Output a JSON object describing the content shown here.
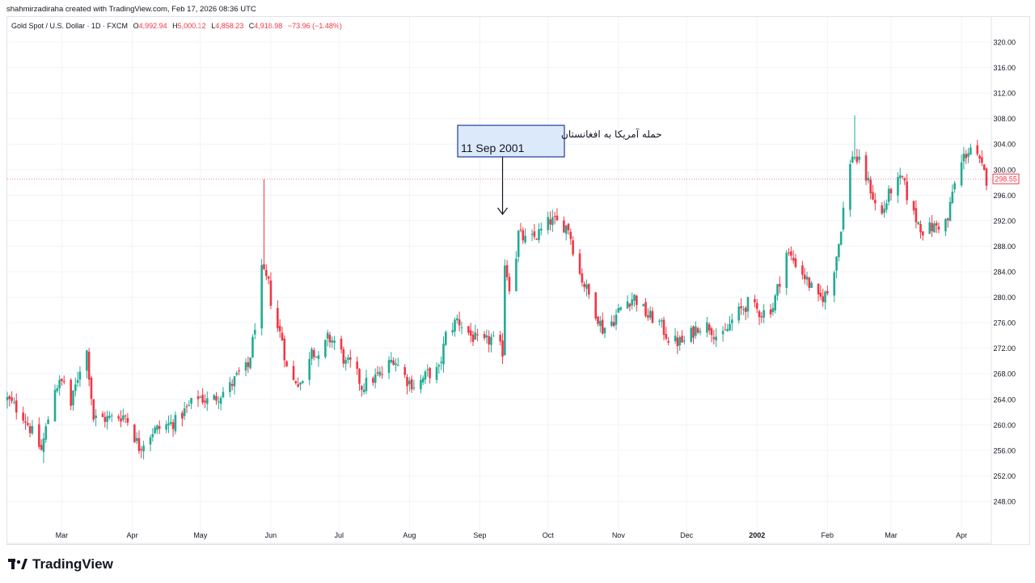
{
  "header": {
    "credit": "shahmirzadiraha created with TradingView.com, Feb 17, 2026 08:36 UTC"
  },
  "legend": {
    "symbol": "Gold Spot / U.S. Dollar · 1D · FXCM",
    "o_label": "O",
    "o_value": "4,992.94",
    "h_label": "H",
    "h_value": "5,000.12",
    "l_label": "L",
    "l_value": "4,858.23",
    "c_label": "C",
    "c_value": "4,918.98",
    "change": "−73.96 (−1.48%)"
  },
  "brand": {
    "name": "TradingView"
  },
  "colors": {
    "up": "#22ab94",
    "down": "#f23645",
    "grid": "#f0f3fa",
    "axis_text": "#131722",
    "annotation_border": "#1e3d8f",
    "annotation_fill": "#dbe9fb"
  },
  "chart_data": {
    "type": "candlestick",
    "y_axis": {
      "position": "right",
      "min": 246.5,
      "max": 321.5,
      "ticks": [
        "248.00",
        "252.00",
        "256.00",
        "260.00",
        "264.00",
        "268.00",
        "272.00",
        "276.00",
        "280.00",
        "284.00",
        "288.00",
        "292.00",
        "296.00",
        "300.00",
        "304.00",
        "308.00",
        "312.00",
        "316.00",
        "320.00"
      ]
    },
    "x_axis": {
      "start": "2001-02-05",
      "end": "2002-04-12",
      "ticks": [
        {
          "label": "Mar",
          "date": "2001-03-01"
        },
        {
          "label": "Apr",
          "date": "2001-04-01"
        },
        {
          "label": "May",
          "date": "2001-05-01"
        },
        {
          "label": "Jun",
          "date": "2001-06-01"
        },
        {
          "label": "Jul",
          "date": "2001-07-01"
        },
        {
          "label": "Aug",
          "date": "2001-08-01"
        },
        {
          "label": "Sep",
          "date": "2001-09-01"
        },
        {
          "label": "Oct",
          "date": "2001-10-01"
        },
        {
          "label": "Nov",
          "date": "2001-11-01"
        },
        {
          "label": "Dec",
          "date": "2001-12-01"
        },
        {
          "label": "2002",
          "date": "2002-01-01",
          "bold": true
        },
        {
          "label": "Feb",
          "date": "2002-02-01"
        },
        {
          "label": "Mar",
          "date": "2002-03-01"
        },
        {
          "label": "Apr",
          "date": "2002-04-01"
        }
      ]
    },
    "anchors": [
      [
        "2001-02-05",
        264.0
      ],
      [
        "2001-02-12",
        261.5
      ],
      [
        "2001-02-20",
        256.0
      ],
      [
        "2001-02-26",
        266.0
      ],
      [
        "2001-03-02",
        266.8
      ],
      [
        "2001-03-05",
        263.0
      ],
      [
        "2001-03-09",
        269.0
      ],
      [
        "2001-03-12",
        271.5
      ],
      [
        "2001-03-15",
        261.0
      ],
      [
        "2001-03-22",
        261.0
      ],
      [
        "2001-03-29",
        261.5
      ],
      [
        "2001-04-04",
        256.5
      ],
      [
        "2001-04-10",
        259.0
      ],
      [
        "2001-04-20",
        260.5
      ],
      [
        "2001-04-30",
        264.5
      ],
      [
        "2001-05-05",
        263.5
      ],
      [
        "2001-05-14",
        266.0
      ],
      [
        "2001-05-18",
        268.0
      ],
      [
        "2001-05-22",
        269.0
      ],
      [
        "2001-05-24",
        273.0
      ],
      [
        "2001-05-28",
        284.0
      ],
      [
        "2001-05-31",
        282.0
      ],
      [
        "2001-06-02",
        277.0
      ],
      [
        "2001-06-06",
        273.5
      ],
      [
        "2001-06-09",
        266.5
      ],
      [
        "2001-06-12",
        267.0
      ],
      [
        "2001-06-15",
        266.5
      ],
      [
        "2001-06-19",
        272.5
      ],
      [
        "2001-06-22",
        270.0
      ],
      [
        "2001-06-26",
        273.5
      ],
      [
        "2001-06-30",
        273.0
      ],
      [
        "2001-07-04",
        269.5
      ],
      [
        "2001-07-07",
        269.5
      ],
      [
        "2001-07-11",
        266.0
      ],
      [
        "2001-07-15",
        267.0
      ],
      [
        "2001-07-20",
        268.0
      ],
      [
        "2001-07-25",
        270.5
      ],
      [
        "2001-07-31",
        267.0
      ],
      [
        "2001-08-04",
        266.0
      ],
      [
        "2001-08-09",
        268.0
      ],
      [
        "2001-08-14",
        268.5
      ],
      [
        "2001-08-17",
        274.0
      ],
      [
        "2001-08-22",
        276.5
      ],
      [
        "2001-08-28",
        274.0
      ],
      [
        "2001-09-02",
        272.5
      ],
      [
        "2001-09-06",
        273.5
      ],
      [
        "2001-09-10",
        272.0
      ],
      [
        "2001-09-11",
        271.5
      ],
      [
        "2001-09-12",
        285.5
      ],
      [
        "2001-09-15",
        280.0
      ],
      [
        "2001-09-18",
        290.0
      ],
      [
        "2001-09-22",
        288.5
      ],
      [
        "2001-09-27",
        290.0
      ],
      [
        "2001-10-02",
        292.0
      ],
      [
        "2001-10-06",
        291.5
      ],
      [
        "2001-10-10",
        291.0
      ],
      [
        "2001-10-14",
        284.5
      ],
      [
        "2001-10-20",
        279.5
      ],
      [
        "2001-10-25",
        275.0
      ],
      [
        "2001-10-30",
        276.5
      ],
      [
        "2001-11-03",
        279.0
      ],
      [
        "2001-11-08",
        280.0
      ],
      [
        "2001-11-14",
        277.0
      ],
      [
        "2001-11-18",
        276.5
      ],
      [
        "2001-11-24",
        273.0
      ],
      [
        "2001-11-30",
        273.0
      ],
      [
        "2001-12-06",
        275.5
      ],
      [
        "2001-12-11",
        275.5
      ],
      [
        "2001-12-16",
        273.0
      ],
      [
        "2001-12-22",
        277.0
      ],
      [
        "2001-12-28",
        279.0
      ],
      [
        "2002-01-03",
        277.5
      ],
      [
        "2002-01-08",
        278.5
      ],
      [
        "2002-01-14",
        287.0
      ],
      [
        "2002-01-19",
        285.0
      ],
      [
        "2002-01-24",
        282.0
      ],
      [
        "2002-01-28",
        279.5
      ],
      [
        "2002-02-02",
        281.0
      ],
      [
        "2002-02-06",
        288.5
      ],
      [
        "2002-02-09",
        296.5
      ],
      [
        "2002-02-12",
        302.5
      ],
      [
        "2002-02-16",
        300.5
      ],
      [
        "2002-02-20",
        297.0
      ],
      [
        "2002-02-24",
        292.0
      ],
      [
        "2002-03-01",
        297.0
      ],
      [
        "2002-03-06",
        298.5
      ],
      [
        "2002-03-10",
        293.5
      ],
      [
        "2002-03-15",
        290.5
      ],
      [
        "2002-03-20",
        291.0
      ],
      [
        "2002-03-26",
        292.0
      ],
      [
        "2002-03-28",
        296.5
      ],
      [
        "2002-04-02",
        302.0
      ],
      [
        "2002-04-05",
        303.5
      ],
      [
        "2002-04-09",
        301.0
      ],
      [
        "2002-04-12",
        298.5
      ]
    ],
    "extremes": {
      "high": {
        "date": "2002-02-13",
        "value": 308.5
      },
      "spike_may": {
        "date": "2001-05-29",
        "value": 298.5
      },
      "low": {
        "date": "2001-02-21",
        "value": 254.0
      }
    },
    "last_price": "298.55",
    "annotation": {
      "line1": "حمله آمریکا به افغانستان",
      "line2": "11 Sep 2001",
      "date": "2001-09-11",
      "value": 293.0
    }
  }
}
